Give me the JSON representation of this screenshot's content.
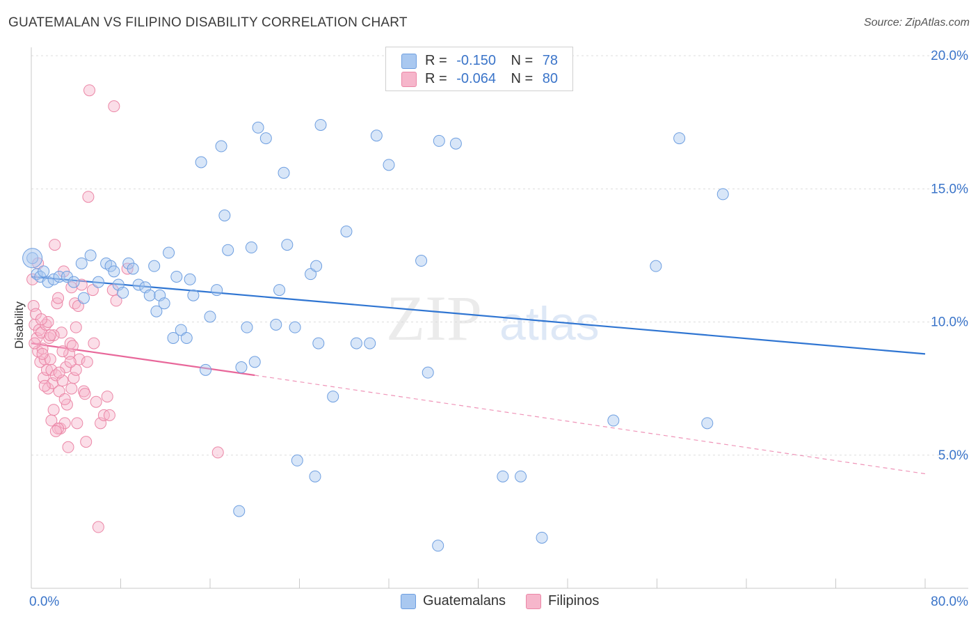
{
  "header": {
    "title": "GUATEMALAN VS FILIPINO DISABILITY CORRELATION CHART",
    "source": "Source: ZipAtlas.com"
  },
  "legend": {
    "rows": [
      {
        "r_label": "R =",
        "r_value": "-0.150",
        "n_label": "N =",
        "n_value": "78",
        "color": "#a9c8f0"
      },
      {
        "r_label": "R =",
        "r_value": "-0.064",
        "n_label": "N =",
        "n_value": "80",
        "color": "#f6b6cb"
      }
    ]
  },
  "bottom_legend": {
    "items": [
      {
        "label": "Guatemalans",
        "color": "#a9c8f0"
      },
      {
        "label": "Filipinos",
        "color": "#f6b6cb"
      }
    ]
  },
  "watermark": {
    "part1": "ZIP",
    "part2": "atlas"
  },
  "chart_data": {
    "type": "scatter",
    "ylabel": "Disability",
    "xlabel": "",
    "xlim": [
      0,
      80
    ],
    "ylim": [
      0,
      20
    ],
    "x_tick_labels": [
      "0.0%",
      "80.0%"
    ],
    "y_tick_labels": [
      "5.0%",
      "10.0%",
      "15.0%",
      "20.0%"
    ],
    "y_ticks": [
      5,
      10,
      15,
      20
    ],
    "grid": "horizontal dashed",
    "colors": {
      "guatemalans_fill": "#a9c8f0",
      "guatemalans_stroke": "#6d9ee0",
      "guatemalans_line": "#2f75d2",
      "filipinos_fill": "#f6b6cb",
      "filipinos_stroke": "#eb86a6",
      "filipinos_line": "#e8679a",
      "tick_label": "#3a74c9"
    },
    "series": [
      {
        "name": "Guatemalans",
        "r": -0.15,
        "n": 78,
        "trend": {
          "x": [
            0,
            80
          ],
          "y": [
            11.7,
            8.8
          ]
        },
        "points": [
          [
            0.1,
            12.4
          ],
          [
            0.5,
            11.8
          ],
          [
            0.8,
            11.7
          ],
          [
            1.1,
            11.9
          ],
          [
            1.5,
            11.5
          ],
          [
            2.0,
            11.6
          ],
          [
            2.5,
            11.7
          ],
          [
            3.2,
            11.7
          ],
          [
            3.8,
            11.5
          ],
          [
            4.5,
            12.2
          ],
          [
            4.7,
            10.9
          ],
          [
            5.3,
            12.5
          ],
          [
            6.0,
            11.5
          ],
          [
            6.7,
            12.2
          ],
          [
            7.1,
            12.1
          ],
          [
            7.4,
            11.9
          ],
          [
            7.8,
            11.4
          ],
          [
            8.2,
            11.1
          ],
          [
            8.7,
            12.2
          ],
          [
            9.1,
            12.0
          ],
          [
            9.6,
            11.4
          ],
          [
            10.2,
            11.3
          ],
          [
            10.6,
            11.0
          ],
          [
            11.0,
            12.1
          ],
          [
            11.5,
            11.0
          ],
          [
            11.9,
            10.7
          ],
          [
            12.3,
            12.6
          ],
          [
            12.7,
            9.4
          ],
          [
            13.0,
            11.7
          ],
          [
            13.4,
            9.7
          ],
          [
            13.9,
            9.4
          ],
          [
            14.2,
            11.6
          ],
          [
            14.5,
            11.0
          ],
          [
            15.2,
            16.0
          ],
          [
            15.6,
            8.2
          ],
          [
            16.0,
            10.2
          ],
          [
            16.6,
            11.2
          ],
          [
            17.0,
            16.6
          ],
          [
            17.3,
            14.0
          ],
          [
            17.6,
            12.7
          ],
          [
            18.6,
            2.9
          ],
          [
            18.8,
            8.3
          ],
          [
            19.3,
            9.8
          ],
          [
            19.7,
            12.8
          ],
          [
            20.3,
            17.3
          ],
          [
            21.0,
            16.9
          ],
          [
            21.9,
            9.9
          ],
          [
            22.2,
            11.2
          ],
          [
            22.6,
            15.6
          ],
          [
            22.9,
            12.9
          ],
          [
            23.6,
            9.8
          ],
          [
            23.8,
            4.8
          ],
          [
            25.0,
            11.8
          ],
          [
            25.4,
            4.2
          ],
          [
            25.5,
            12.1
          ],
          [
            25.7,
            9.2
          ],
          [
            25.9,
            17.4
          ],
          [
            27.0,
            7.2
          ],
          [
            28.2,
            13.4
          ],
          [
            29.1,
            9.2
          ],
          [
            30.3,
            9.2
          ],
          [
            30.9,
            17.0
          ],
          [
            32.0,
            15.9
          ],
          [
            34.9,
            12.3
          ],
          [
            35.5,
            8.1
          ],
          [
            36.4,
            1.6
          ],
          [
            38.0,
            16.7
          ],
          [
            42.2,
            4.2
          ],
          [
            43.8,
            4.2
          ],
          [
            45.7,
            1.9
          ],
          [
            52.1,
            6.3
          ],
          [
            55.9,
            12.1
          ],
          [
            58.0,
            16.9
          ],
          [
            60.5,
            6.2
          ],
          [
            61.9,
            14.8
          ],
          [
            36.5,
            16.8
          ],
          [
            11.2,
            10.4
          ],
          [
            20.0,
            8.5
          ]
        ]
      },
      {
        "name": "Filipinos",
        "r": -0.064,
        "n": 80,
        "trend": {
          "x": [
            0,
            20
          ],
          "y": [
            9.2,
            8.0
          ]
        },
        "trend_dashed": {
          "x": [
            20,
            80
          ],
          "y": [
            8.0,
            4.3
          ]
        },
        "points": [
          [
            0.1,
            11.6
          ],
          [
            0.2,
            10.6
          ],
          [
            0.3,
            9.9
          ],
          [
            0.5,
            9.4
          ],
          [
            0.6,
            8.9
          ],
          [
            0.7,
            9.7
          ],
          [
            0.8,
            8.5
          ],
          [
            0.9,
            9.6
          ],
          [
            1.0,
            9.0
          ],
          [
            1.1,
            7.9
          ],
          [
            1.2,
            8.6
          ],
          [
            1.3,
            9.9
          ],
          [
            1.4,
            8.2
          ],
          [
            1.5,
            7.5
          ],
          [
            1.6,
            9.4
          ],
          [
            1.7,
            8.6
          ],
          [
            1.8,
            8.2
          ],
          [
            1.9,
            7.7
          ],
          [
            2.0,
            6.7
          ],
          [
            2.1,
            12.9
          ],
          [
            2.2,
            8.0
          ],
          [
            2.3,
            10.7
          ],
          [
            2.4,
            10.9
          ],
          [
            2.5,
            7.4
          ],
          [
            2.6,
            6.0
          ],
          [
            2.7,
            9.6
          ],
          [
            2.8,
            7.8
          ],
          [
            2.9,
            11.9
          ],
          [
            3.0,
            6.2
          ],
          [
            3.1,
            8.3
          ],
          [
            3.2,
            6.9
          ],
          [
            3.3,
            5.3
          ],
          [
            3.4,
            8.8
          ],
          [
            3.5,
            9.2
          ],
          [
            3.6,
            7.5
          ],
          [
            3.7,
            9.1
          ],
          [
            3.8,
            7.9
          ],
          [
            3.9,
            10.7
          ],
          [
            4.0,
            8.2
          ],
          [
            4.1,
            6.2
          ],
          [
            4.3,
            8.6
          ],
          [
            4.5,
            11.4
          ],
          [
            4.7,
            7.4
          ],
          [
            4.8,
            7.3
          ],
          [
            4.9,
            5.5
          ],
          [
            5.0,
            8.5
          ],
          [
            5.1,
            14.7
          ],
          [
            5.2,
            18.7
          ],
          [
            5.5,
            11.2
          ],
          [
            5.6,
            9.2
          ],
          [
            6.0,
            2.3
          ],
          [
            6.2,
            6.2
          ],
          [
            6.5,
            6.5
          ],
          [
            6.8,
            7.2
          ],
          [
            7.0,
            6.5
          ],
          [
            7.3,
            11.2
          ],
          [
            7.4,
            18.1
          ],
          [
            8.6,
            12.0
          ],
          [
            16.7,
            5.1
          ],
          [
            0.4,
            10.3
          ],
          [
            1.0,
            8.8
          ],
          [
            1.5,
            10.0
          ],
          [
            2.0,
            9.5
          ],
          [
            2.5,
            8.1
          ],
          [
            3.0,
            7.1
          ],
          [
            3.5,
            8.5
          ],
          [
            4.0,
            9.8
          ],
          [
            0.6,
            12.2
          ],
          [
            1.2,
            7.6
          ],
          [
            1.8,
            6.3
          ],
          [
            2.4,
            6.0
          ],
          [
            2.8,
            8.9
          ],
          [
            3.6,
            11.3
          ],
          [
            4.2,
            10.6
          ],
          [
            0.3,
            9.2
          ],
          [
            0.9,
            10.1
          ],
          [
            1.7,
            9.5
          ],
          [
            2.2,
            5.9
          ],
          [
            5.8,
            7.0
          ],
          [
            7.6,
            10.8
          ]
        ]
      }
    ]
  }
}
